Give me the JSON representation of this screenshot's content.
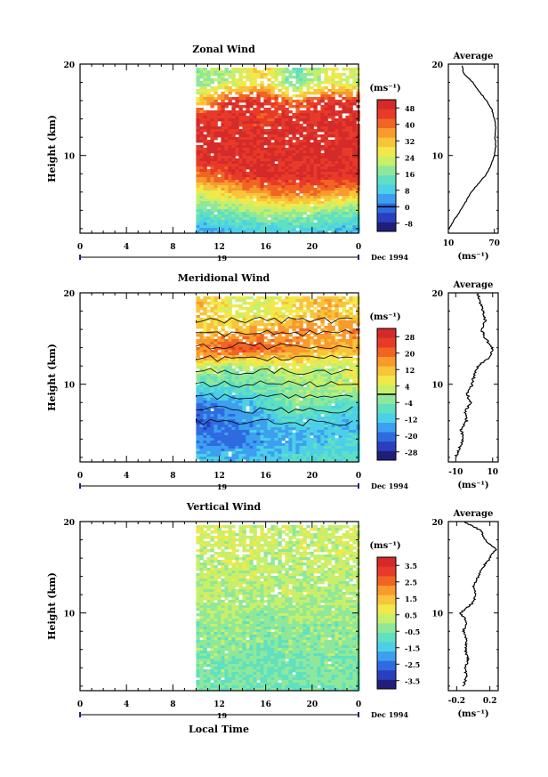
{
  "xaxis": {
    "ticks": [
      "0",
      "4",
      "8",
      "12",
      "16",
      "20",
      "0"
    ],
    "date_label": "Dec 1994",
    "date_day": "19",
    "xlabel": "Local Time"
  },
  "ylabel": "Height (km)",
  "unit_label": "(ms⁻¹)",
  "avg_unit": "(ms⁻¹)",
  "chart_data": [
    {
      "type": "heatmap",
      "title": "Zonal Wind",
      "ylabel": "Height (km)",
      "xlabel": "",
      "xlim": [
        0,
        24
      ],
      "ylim": [
        1.5,
        20
      ],
      "yticks": [
        "10",
        "20"
      ],
      "data_start_hour": 10,
      "colorbar": {
        "unit": "(ms⁻¹)",
        "ticks": [
          "48",
          "40",
          "32",
          "24",
          "16",
          "8",
          "0",
          "-8"
        ],
        "min": -12,
        "max": 52,
        "zero_line": 0
      },
      "profile_rows": [
        {
          "z": 18,
          "v": [
            18,
            22,
            30,
            14,
            26,
            22
          ]
        },
        {
          "z": 16,
          "v": [
            30,
            48,
            48,
            40,
            48,
            48
          ]
        },
        {
          "z": 14,
          "v": [
            48,
            48,
            44,
            48,
            48,
            48
          ]
        },
        {
          "z": 12,
          "v": [
            48,
            48,
            48,
            48,
            48,
            48
          ]
        },
        {
          "z": 10,
          "v": [
            48,
            48,
            48,
            48,
            48,
            48
          ]
        },
        {
          "z": 8,
          "v": [
            40,
            44,
            48,
            48,
            48,
            48
          ]
        },
        {
          "z": 6,
          "v": [
            24,
            30,
            36,
            40,
            36,
            32
          ]
        },
        {
          "z": 4,
          "v": [
            14,
            16,
            20,
            20,
            18,
            16
          ]
        },
        {
          "z": 2,
          "v": [
            6,
            8,
            10,
            10,
            8,
            6
          ]
        }
      ],
      "average": {
        "title": "Average",
        "xticks": [
          "10",
          "70"
        ],
        "xlim": [
          10,
          75
        ],
        "unit": "(ms⁻¹)",
        "z": [
          2,
          3,
          4,
          5,
          6,
          7,
          8,
          9,
          10,
          11,
          12,
          13,
          14,
          15,
          16,
          17,
          18,
          19,
          20
        ],
        "v": [
          11,
          18,
          26,
          33,
          40,
          50,
          60,
          66,
          70,
          72,
          71,
          72,
          70,
          67,
          60,
          50,
          42,
          30,
          28
        ]
      }
    },
    {
      "type": "heatmap",
      "title": "Meridional Wind",
      "ylabel": "Height (km)",
      "xlabel": "",
      "xlim": [
        0,
        24
      ],
      "ylim": [
        1.5,
        20
      ],
      "yticks": [
        "10",
        "20"
      ],
      "data_start_hour": 10,
      "colorbar": {
        "unit": "(ms⁻¹)",
        "ticks": [
          "28",
          "20",
          "12",
          "4",
          "-4",
          "-12",
          "-20",
          "-28"
        ],
        "min": -32,
        "max": 32,
        "zero_line": 0
      },
      "profile_rows": [
        {
          "z": 18,
          "v": [
            12,
            6,
            4,
            8,
            14,
            6
          ]
        },
        {
          "z": 16,
          "v": [
            10,
            12,
            16,
            18,
            16,
            20
          ]
        },
        {
          "z": 14,
          "v": [
            20,
            24,
            22,
            16,
            14,
            12
          ]
        },
        {
          "z": 12,
          "v": [
            4,
            -2,
            0,
            6,
            0,
            4
          ]
        },
        {
          "z": 10,
          "v": [
            -8,
            -6,
            -4,
            -2,
            2,
            4
          ]
        },
        {
          "z": 8,
          "v": [
            -20,
            -16,
            -10,
            -2,
            -6,
            -8
          ]
        },
        {
          "z": 6,
          "v": [
            -22,
            -18,
            -14,
            -10,
            -12,
            -14
          ]
        },
        {
          "z": 4,
          "v": [
            -18,
            -20,
            -16,
            -14,
            -12,
            -10
          ]
        },
        {
          "z": 2,
          "v": [
            -12,
            -14,
            -12,
            -10,
            -8,
            -8
          ]
        }
      ],
      "average": {
        "title": "Average",
        "xticks": [
          "-10",
          "10"
        ],
        "xlim": [
          -14,
          13
        ],
        "unit": "(ms⁻¹)",
        "z": [
          2,
          3,
          4,
          5,
          6,
          7,
          8,
          9,
          10,
          11,
          12,
          13,
          14,
          15,
          16,
          17,
          18,
          19,
          20
        ],
        "v": [
          -10,
          -8,
          -6,
          -7,
          -4,
          -5,
          -2,
          -4,
          -1,
          0,
          2,
          9,
          10,
          6,
          4,
          6,
          5,
          3,
          2
        ]
      }
    },
    {
      "type": "heatmap",
      "title": "Vertical Wind",
      "ylabel": "Height (km)",
      "xlabel": "Local Time",
      "xlim": [
        0,
        24
      ],
      "ylim": [
        1.5,
        20
      ],
      "yticks": [
        "10",
        "20"
      ],
      "data_start_hour": 10,
      "colorbar": {
        "unit": "(ms⁻¹)",
        "ticks": [
          "3.5",
          "2.5",
          "1.5",
          "0.5",
          "-0.5",
          "-1.5",
          "-2.5",
          "-3.5"
        ],
        "min": -4,
        "max": 4,
        "zero_line": null
      },
      "profile_rows": [
        {
          "z": 18,
          "v": [
            0.4,
            0.3,
            0.5,
            0.2,
            0.4,
            0.3
          ]
        },
        {
          "z": 16,
          "v": [
            0.2,
            0.4,
            0.1,
            0.3,
            0.2,
            0.4
          ]
        },
        {
          "z": 14,
          "v": [
            0.1,
            0.2,
            0.3,
            0.1,
            0.2,
            0.1
          ]
        },
        {
          "z": 12,
          "v": [
            0.2,
            0.1,
            0.1,
            0.2,
            0.0,
            0.1
          ]
        },
        {
          "z": 10,
          "v": [
            -0.1,
            0.0,
            -0.2,
            0.0,
            -0.1,
            -0.2
          ]
        },
        {
          "z": 8,
          "v": [
            -0.3,
            -0.2,
            -0.4,
            -0.3,
            -0.2,
            -0.3
          ]
        },
        {
          "z": 6,
          "v": [
            -0.4,
            -0.3,
            -0.5,
            -0.4,
            -0.3,
            -0.4
          ]
        },
        {
          "z": 4,
          "v": [
            -0.5,
            -0.4,
            -0.6,
            -0.5,
            -0.4,
            -0.5
          ]
        },
        {
          "z": 2,
          "v": [
            -0.6,
            -0.5,
            -0.7,
            -0.5,
            -0.6,
            -0.5
          ]
        }
      ],
      "average": {
        "title": "Average",
        "xticks": [
          "-0.2",
          "0.2"
        ],
        "xlim": [
          -0.3,
          0.3
        ],
        "unit": "(ms⁻¹)",
        "z": [
          2,
          3,
          4,
          5,
          6,
          7,
          8,
          9,
          10,
          11,
          12,
          13,
          14,
          15,
          16,
          17,
          18,
          19,
          20
        ],
        "v": [
          -0.12,
          -0.08,
          -0.1,
          -0.06,
          -0.1,
          -0.07,
          -0.12,
          -0.08,
          -0.15,
          -0.02,
          0.04,
          0.0,
          0.06,
          0.12,
          0.2,
          0.28,
          0.14,
          0.1,
          -0.12
        ]
      }
    }
  ]
}
